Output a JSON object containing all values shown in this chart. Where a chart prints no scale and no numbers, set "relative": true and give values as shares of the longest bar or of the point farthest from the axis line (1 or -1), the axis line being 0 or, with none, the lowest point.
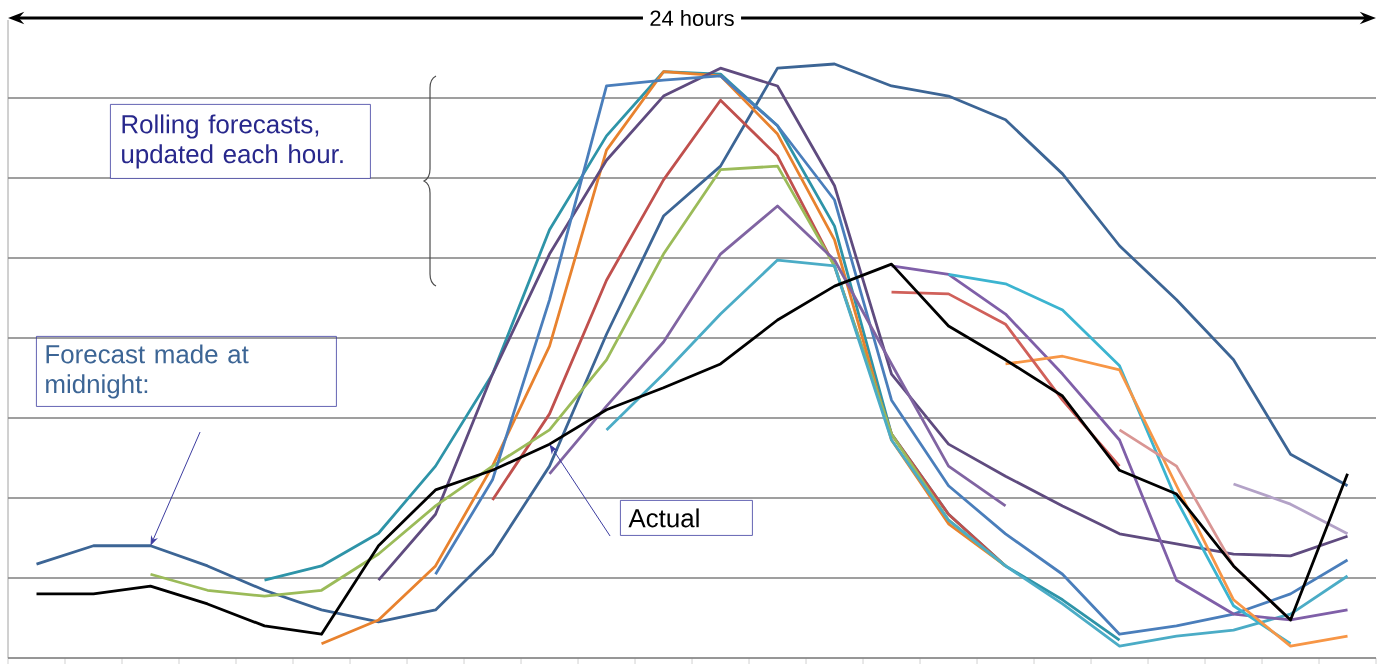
{
  "chart_data": {
    "type": "line",
    "relative": true,
    "grid": "y",
    "legend": false,
    "marker": "none",
    "line_style": "solid",
    "annotations": [
      "24 hours",
      "Rolling forecasts, updated each hour."
    ],
    "categories": [
      null,
      null,
      null,
      null,
      null,
      null,
      null,
      null,
      null,
      null,
      null,
      null,
      null,
      null,
      null,
      null,
      null,
      null,
      null,
      null,
      null,
      null,
      null,
      null
    ],
    "series": [
      {
        "name": "Forecast made at midnight:",
        "color": "#3c6595",
        "values": [
          0.158,
          0.189,
          0.189,
          0.155,
          0.114,
          0.081,
          0.061,
          0.081,
          0.175,
          0.323,
          0.545,
          0.744,
          0.828,
          0.993,
          1.0,
          0.963,
          0.946,
          0.906,
          0.815,
          0.694,
          0.603,
          0.502,
          0.343,
          0.29
        ]
      },
      {
        "color": "#2e94a8",
        "values": [
          null,
          null,
          null,
          null,
          0.131,
          0.155,
          0.21,
          0.323,
          0.478,
          0.721,
          0.879,
          0.987,
          0.983,
          0.896,
          0.727,
          0.377,
          0.242,
          0.155,
          0.098,
          0.03,
          null,
          null,
          null,
          null
        ]
      },
      {
        "color": "#e8822e",
        "values": [
          null,
          null,
          null,
          null,
          null,
          0.024,
          0.064,
          0.155,
          0.323,
          0.525,
          0.855,
          0.987,
          0.98,
          0.882,
          0.704,
          0.367,
          0.226,
          0.155,
          null,
          null,
          null,
          null,
          null,
          null
        ]
      },
      {
        "color": "#5f4b7f",
        "values": [
          null,
          null,
          null,
          null,
          null,
          null,
          0.131,
          0.242,
          0.478,
          0.68,
          0.838,
          0.946,
          0.993,
          0.963,
          0.795,
          0.478,
          0.36,
          0.306,
          0.256,
          0.209,
          0.192,
          0.175,
          0.172,
          0.205
        ]
      },
      {
        "color": "#c0504d",
        "values": [
          null,
          null,
          null,
          null,
          null,
          null,
          null,
          null,
          0.266,
          0.411,
          0.636,
          0.805,
          0.939,
          0.845,
          0.66,
          0.377,
          0.242,
          0.155,
          null,
          null,
          null,
          null,
          null,
          null
        ]
      },
      {
        "color": "#9bbb59",
        "values": [
          null,
          null,
          0.141,
          0.114,
          0.104,
          0.114,
          0.175,
          0.256,
          0.323,
          0.384,
          0.502,
          0.68,
          0.822,
          0.828,
          0.66,
          0.377,
          0.232,
          0.155,
          null,
          null,
          null,
          null,
          null,
          null
        ]
      },
      {
        "color": "#4a7ebb",
        "values": [
          null,
          null,
          null,
          null,
          null,
          null,
          null,
          0.141,
          0.3,
          0.603,
          0.963,
          0.973,
          0.98,
          0.896,
          0.771,
          0.434,
          0.29,
          0.209,
          0.141,
          0.04,
          0.054,
          0.074,
          0.108,
          0.165
        ]
      },
      {
        "color": "#8064a2",
        "values": [
          null,
          null,
          null,
          null,
          null,
          null,
          null,
          null,
          null,
          0.31,
          0.424,
          0.532,
          0.68,
          0.761,
          0.67,
          0.495,
          0.323,
          0.256,
          null,
          null,
          null,
          null,
          null,
          null
        ]
      },
      {
        "color": "#4bacc6",
        "values": [
          null,
          null,
          null,
          null,
          null,
          null,
          null,
          null,
          null,
          null,
          0.384,
          0.478,
          0.579,
          0.67,
          0.66,
          0.367,
          0.232,
          0.155,
          0.091,
          0.02,
          0.037,
          0.047,
          0.074,
          0.138
        ]
      },
      {
        "color": "#7f5fa8",
        "values": [
          null,
          null,
          null,
          null,
          null,
          null,
          null,
          null,
          null,
          null,
          null,
          null,
          null,
          null,
          null,
          0.66,
          0.646,
          0.579,
          0.478,
          0.367,
          0.131,
          0.074,
          0.064,
          0.081
        ]
      },
      {
        "color": "#3cb4d0",
        "values": [
          null,
          null,
          null,
          null,
          null,
          null,
          null,
          null,
          null,
          null,
          null,
          null,
          null,
          null,
          null,
          null,
          0.646,
          0.63,
          0.586,
          0.492,
          0.266,
          0.088,
          0.024,
          null
        ]
      },
      {
        "color": "#f79646",
        "values": [
          null,
          null,
          null,
          null,
          null,
          null,
          null,
          null,
          null,
          null,
          null,
          null,
          null,
          null,
          null,
          null,
          null,
          0.495,
          0.508,
          0.485,
          0.29,
          0.098,
          0.02,
          0.037
        ]
      },
      {
        "color": "#d0605a",
        "values": [
          null,
          null,
          null,
          null,
          null,
          null,
          null,
          null,
          null,
          null,
          null,
          null,
          null,
          null,
          null,
          0.616,
          0.613,
          0.562,
          0.434,
          0.323,
          null,
          null,
          null,
          null
        ]
      },
      {
        "color": "#d99694",
        "values": [
          null,
          null,
          null,
          null,
          null,
          null,
          null,
          null,
          null,
          null,
          null,
          null,
          null,
          null,
          null,
          null,
          null,
          null,
          null,
          0.384,
          0.323,
          0.155,
          0.064,
          null
        ]
      },
      {
        "color": "#b3a2c7",
        "values": [
          null,
          null,
          null,
          null,
          null,
          null,
          null,
          null,
          null,
          null,
          null,
          null,
          null,
          null,
          null,
          null,
          null,
          null,
          null,
          null,
          null,
          0.293,
          0.259,
          0.209
        ]
      },
      {
        "name": "Actual",
        "color": "#000000",
        "values": [
          0.108,
          0.108,
          0.121,
          0.091,
          0.054,
          0.04,
          0.189,
          0.283,
          0.316,
          0.36,
          0.418,
          0.455,
          0.495,
          0.569,
          0.626,
          0.663,
          0.559,
          0.502,
          0.441,
          0.316,
          0.276,
          0.155,
          0.064,
          0.31
        ]
      }
    ]
  }
}
